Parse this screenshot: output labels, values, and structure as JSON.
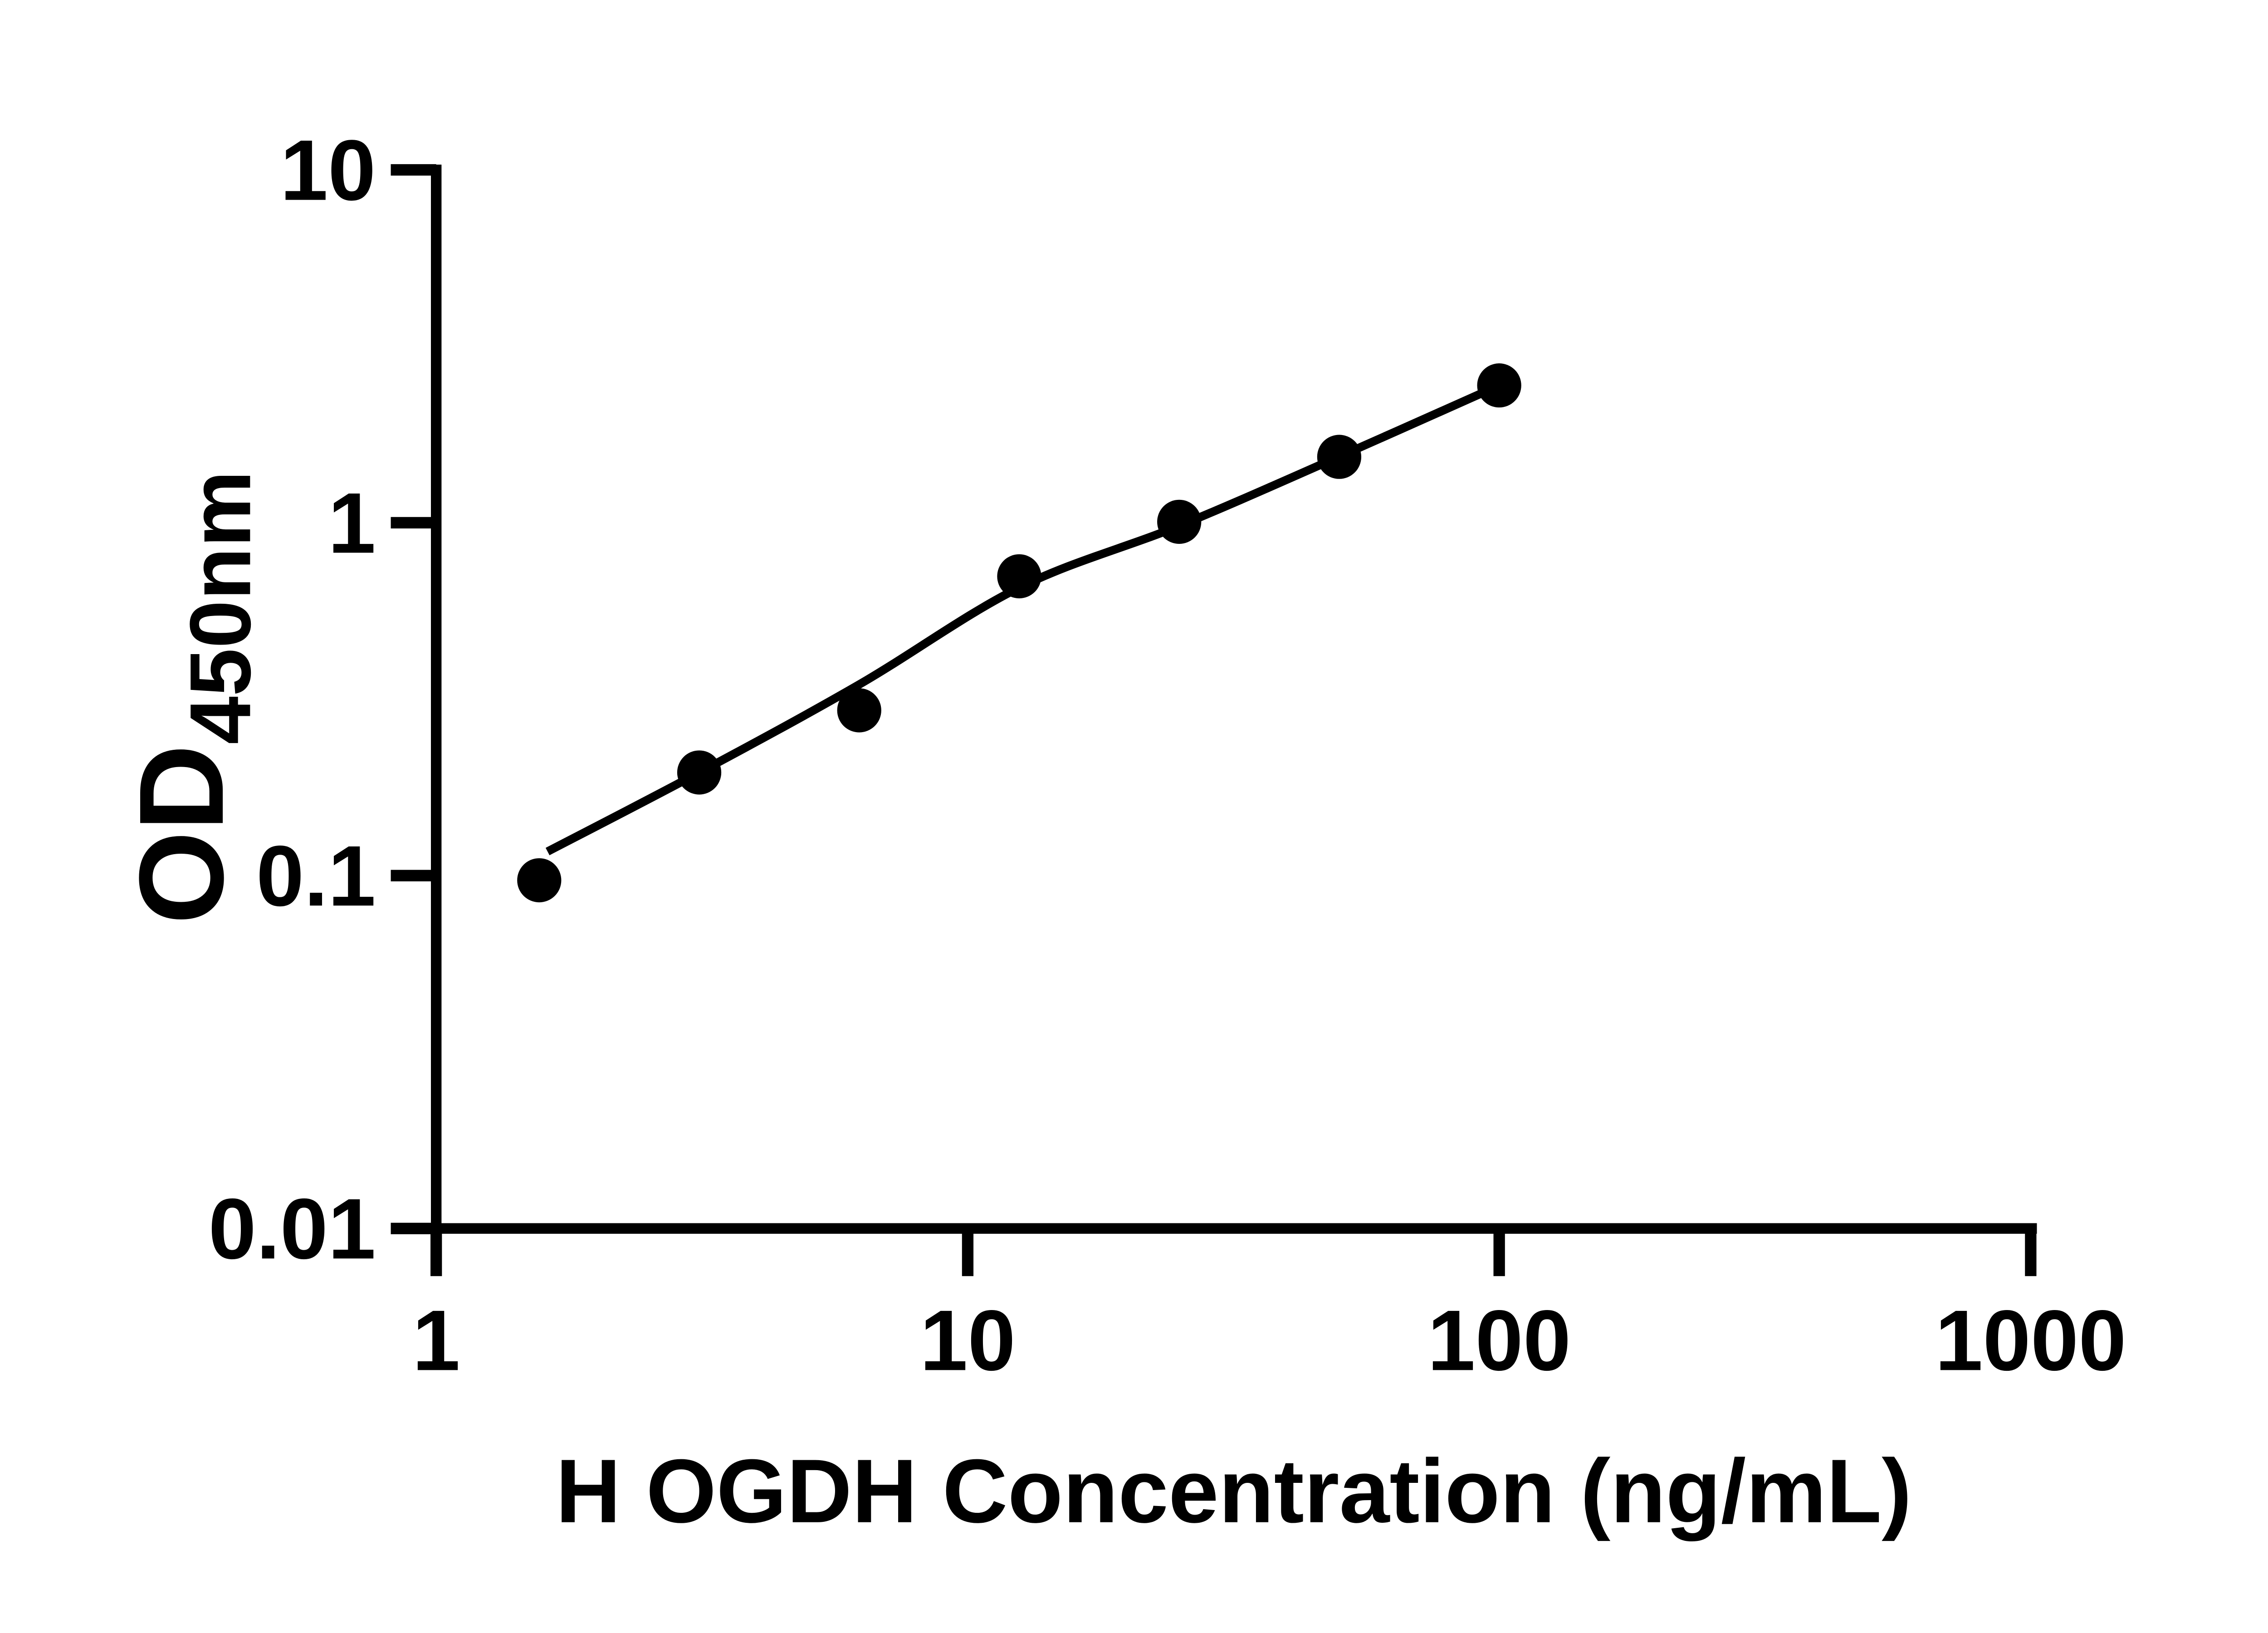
{
  "chart_data": {
    "type": "scatter",
    "title": "",
    "xlabel": "H OGDH Concentration (ng/mL)",
    "ylabel_main": "OD",
    "ylabel_subscript": "450nm",
    "x_scale": "log",
    "y_scale": "log",
    "xlim": [
      1,
      1000
    ],
    "ylim": [
      0.01,
      10
    ],
    "grid": false,
    "legend": null,
    "axis_color": "#000000",
    "marker_color": "#000000",
    "line_color": "#000000",
    "x_ticks": [
      {
        "value": 1,
        "label": "1"
      },
      {
        "value": 10,
        "label": "10"
      },
      {
        "value": 100,
        "label": "100"
      },
      {
        "value": 1000,
        "label": "1000"
      }
    ],
    "y_ticks": [
      {
        "value": 10,
        "label": "10"
      },
      {
        "value": 1,
        "label": "1"
      },
      {
        "value": 0.1,
        "label": "0.1"
      },
      {
        "value": 0.01,
        "label": "0.01"
      }
    ],
    "series": [
      {
        "name": "H OGDH standard points",
        "role": "points",
        "marker": "filled-circle",
        "points": [
          {
            "x": 1.5625,
            "y": 0.097
          },
          {
            "x": 3.125,
            "y": 0.196
          },
          {
            "x": 6.25,
            "y": 0.294
          },
          {
            "x": 12.5,
            "y": 0.705
          },
          {
            "x": 25,
            "y": 1.006
          },
          {
            "x": 50,
            "y": 1.537
          },
          {
            "x": 100,
            "y": 2.45
          }
        ]
      },
      {
        "name": "fitted standard curve",
        "role": "fit-line",
        "points": [
          {
            "x": 1.62,
            "y": 0.117
          },
          {
            "x": 3.125,
            "y": 0.196
          },
          {
            "x": 6.25,
            "y": 0.348
          },
          {
            "x": 12.5,
            "y": 0.655
          },
          {
            "x": 25,
            "y": 0.98
          },
          {
            "x": 50,
            "y": 1.54
          },
          {
            "x": 100,
            "y": 2.45
          }
        ]
      }
    ]
  }
}
